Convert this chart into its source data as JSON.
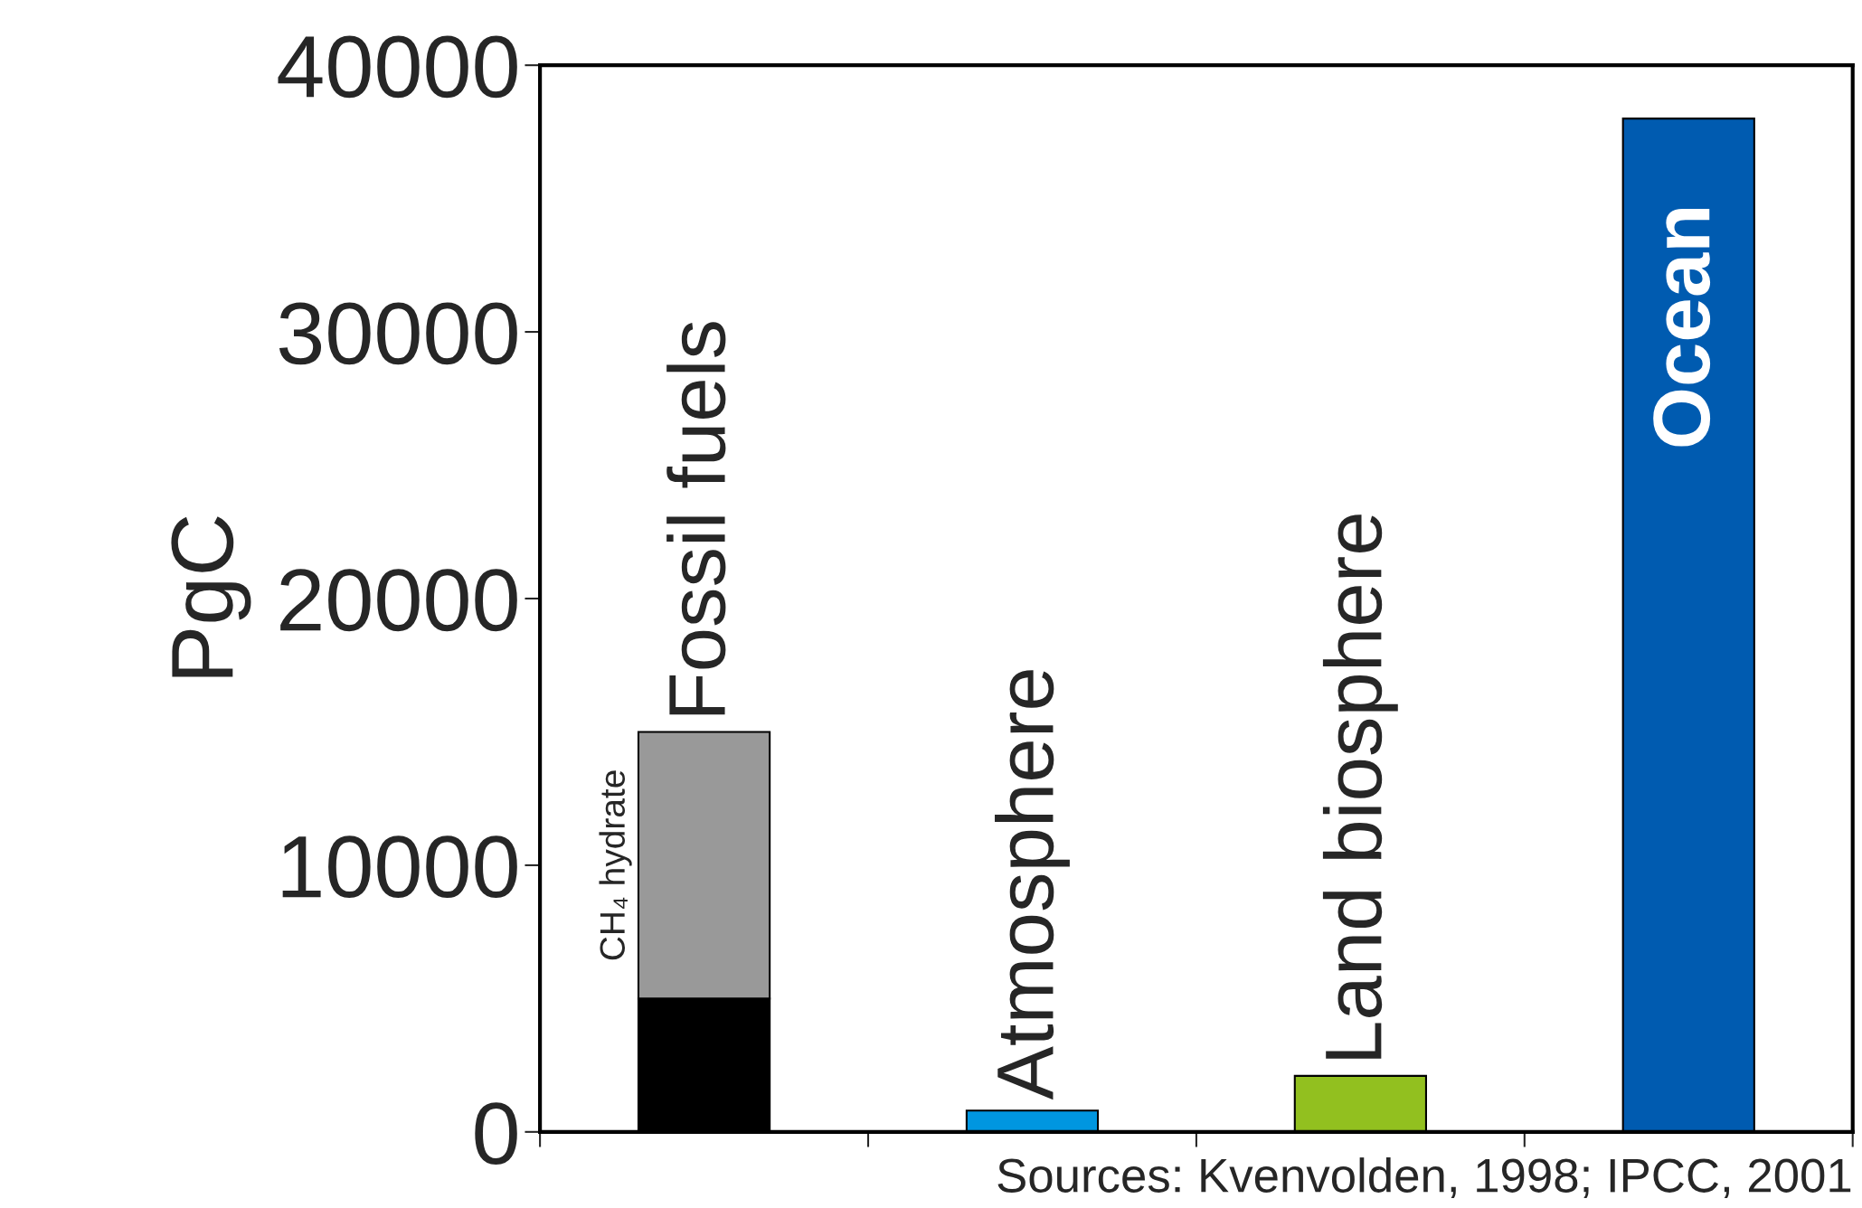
{
  "chart_data": {
    "type": "bar",
    "stacked": true,
    "ylabel": "PgC",
    "categories": [
      "Fossil fuels",
      "Atmosphere",
      "Land biosphere",
      "Ocean"
    ],
    "series": [
      {
        "colors": [
          "#000000",
          "#0096e0",
          "#92c01f",
          "#005bb0"
        ],
        "values": [
          5000,
          800,
          2100,
          38000
        ]
      },
      {
        "name": "CH₄ hydrate",
        "color": "#999999",
        "values": [
          10000,
          null,
          null,
          null
        ]
      }
    ],
    "ylim": [
      0,
      40000
    ],
    "yticks": [
      0,
      10000,
      20000,
      30000,
      40000
    ],
    "grid": false,
    "legend": false,
    "annotations": [
      "Sources: Kvenvolden, 1998; IPCC, 2001"
    ]
  }
}
